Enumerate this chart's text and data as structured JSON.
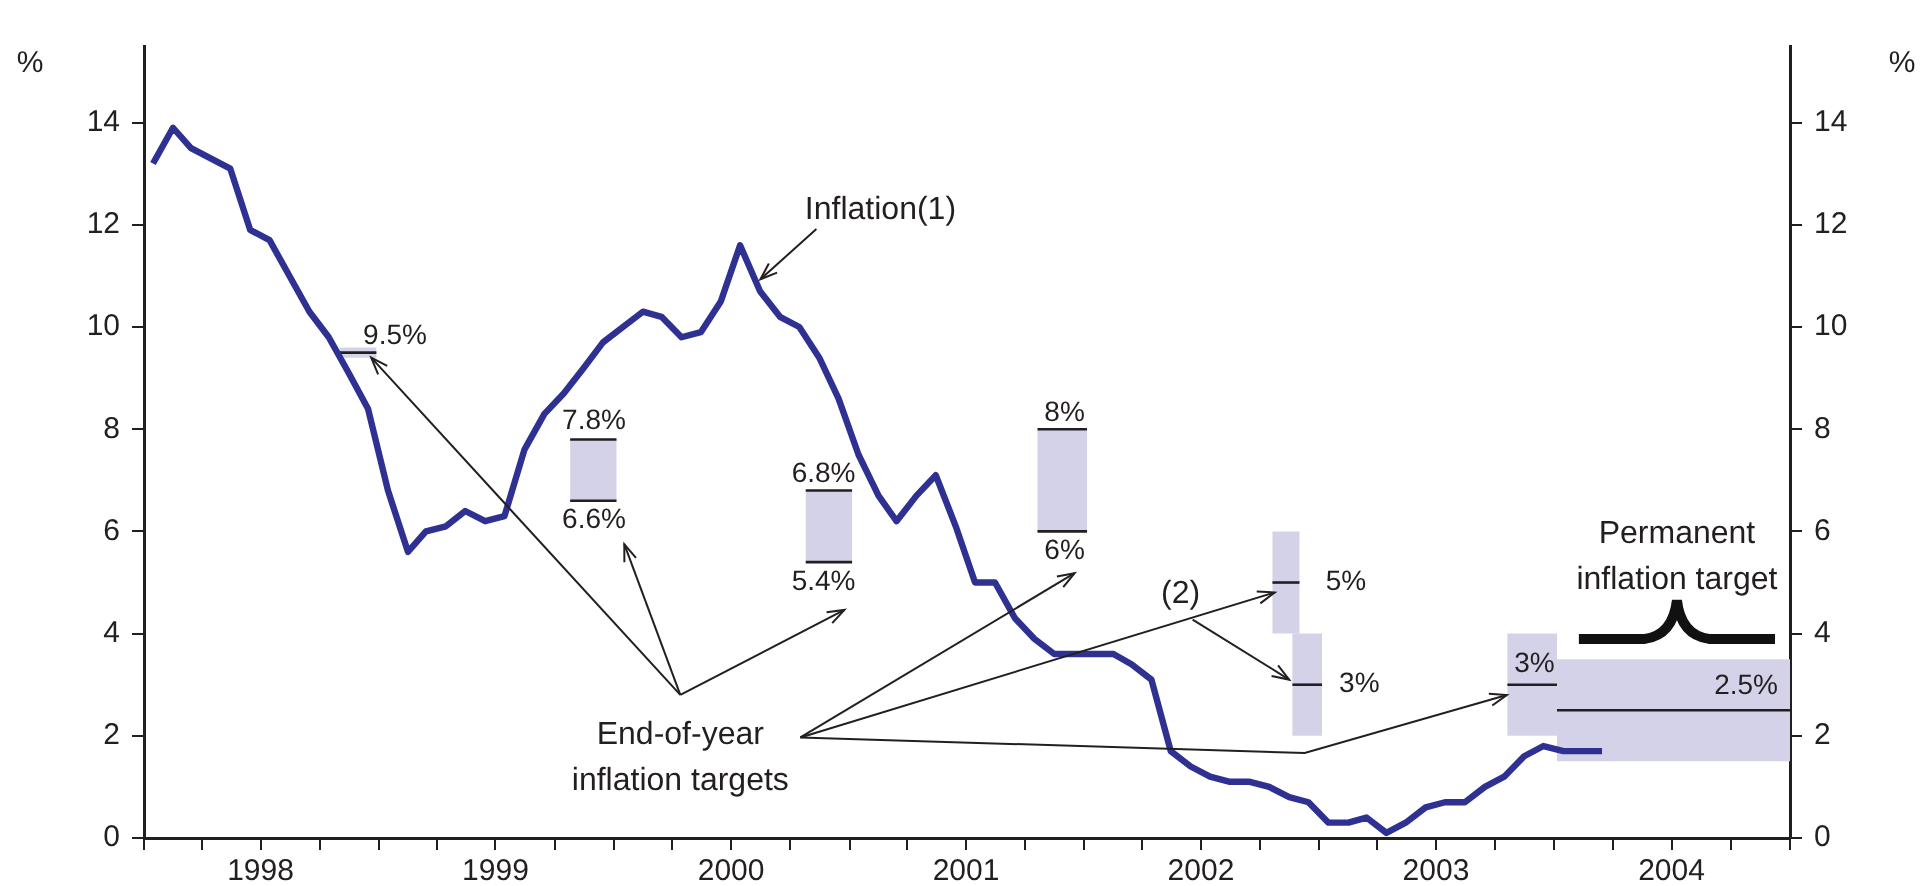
{
  "chart_data": {
    "type": "line",
    "ylabel": "%",
    "y2label": "%",
    "xlim": [
      "1998-01-01",
      "2005-01-01"
    ],
    "xticks": [
      {
        "value": "1998-01-01",
        "label": null
      },
      {
        "value": "1998-04-01",
        "label": null
      },
      {
        "value": "1998-07-01",
        "label": "1998"
      },
      {
        "value": "1998-10-01",
        "label": null
      },
      {
        "value": "1999-01-01",
        "label": null
      },
      {
        "value": "1999-04-01",
        "label": null
      },
      {
        "value": "1999-07-01",
        "label": "1999"
      },
      {
        "value": "1999-10-01",
        "label": null
      },
      {
        "value": "2000-01-01",
        "label": null
      },
      {
        "value": "2000-04-01",
        "label": null
      },
      {
        "value": "2000-07-01",
        "label": "2000"
      },
      {
        "value": "2000-10-01",
        "label": null
      },
      {
        "value": "2001-01-01",
        "label": null
      },
      {
        "value": "2001-04-01",
        "label": null
      },
      {
        "value": "2001-07-01",
        "label": "2001"
      },
      {
        "value": "2001-10-01",
        "label": null
      },
      {
        "value": "2002-01-01",
        "label": null
      },
      {
        "value": "2002-04-01",
        "label": null
      },
      {
        "value": "2002-07-01",
        "label": "2002"
      },
      {
        "value": "2002-10-01",
        "label": null
      },
      {
        "value": "2003-01-01",
        "label": null
      },
      {
        "value": "2003-04-01",
        "label": null
      },
      {
        "value": "2003-07-01",
        "label": "2003"
      },
      {
        "value": "2003-10-01",
        "label": null
      },
      {
        "value": "2004-01-01",
        "label": null
      },
      {
        "value": "2004-04-01",
        "label": null
      },
      {
        "value": "2004-07-01",
        "label": "2004"
      },
      {
        "value": "2004-10-01",
        "label": null
      },
      {
        "value": "2005-01-01",
        "label": null
      }
    ],
    "ylim": [
      0,
      15.5
    ],
    "yticks": [
      0,
      2,
      4,
      6,
      8,
      10,
      12,
      14
    ],
    "y2lim": [
      0,
      15.5
    ],
    "y2ticks": [
      0,
      2,
      4,
      6,
      8,
      10,
      12,
      14
    ],
    "series": [
      {
        "name": "Inflation(1)",
        "type": "line",
        "color": "#2e3192",
        "x": [
          "1998-01-15",
          "1998-02-15",
          "1998-03-15",
          "1998-05-15",
          "1998-06-15",
          "1998-07-15",
          "1998-08-15",
          "1998-09-15",
          "1998-10-15",
          "1998-11-15",
          "1998-12-15",
          "1999-01-15",
          "1999-02-15",
          "1999-03-15",
          "1999-04-15",
          "1999-05-15",
          "1999-06-15",
          "1999-07-15",
          "1999-08-15",
          "1999-09-15",
          "1999-10-15",
          "1999-11-15",
          "1999-12-15",
          "2000-01-15",
          "2000-02-15",
          "2000-03-15",
          "2000-04-15",
          "2000-05-15",
          "2000-06-15",
          "2000-07-15",
          "2000-08-15",
          "2000-09-15",
          "2000-10-15",
          "2000-11-15",
          "2000-12-15",
          "2001-01-15",
          "2001-02-15",
          "2001-03-15",
          "2001-04-15",
          "2001-05-15",
          "2001-06-15",
          "2001-07-15",
          "2001-08-15",
          "2001-09-15",
          "2001-10-15",
          "2001-11-15",
          "2001-12-15",
          "2002-01-15",
          "2002-02-15",
          "2002-03-15",
          "2002-04-15",
          "2002-05-15",
          "2002-06-15",
          "2002-07-15",
          "2002-08-15",
          "2002-09-15",
          "2002-10-15",
          "2002-11-15",
          "2002-12-15",
          "2003-01-15",
          "2003-02-15",
          "2003-03-15",
          "2003-04-15",
          "2003-05-15",
          "2003-06-15",
          "2003-07-15",
          "2003-08-15",
          "2003-09-15",
          "2003-10-15",
          "2003-11-15",
          "2003-12-15",
          "2004-01-15",
          "2004-02-15",
          "2004-03-15"
        ],
        "values": [
          13.2,
          13.9,
          13.5,
          13.1,
          11.9,
          11.7,
          11.0,
          10.3,
          9.8,
          9.1,
          8.4,
          6.8,
          5.6,
          6.0,
          6.1,
          6.4,
          6.2,
          6.3,
          7.6,
          8.3,
          8.7,
          9.2,
          9.7,
          10.0,
          10.3,
          10.2,
          9.8,
          9.9,
          10.5,
          11.6,
          10.7,
          10.2,
          10.0,
          9.4,
          8.6,
          7.5,
          6.7,
          6.2,
          6.7,
          7.1,
          6.1,
          5.0,
          5.0,
          4.3,
          3.9,
          3.6,
          3.6,
          3.6,
          3.6,
          3.4,
          3.1,
          1.7,
          1.4,
          1.2,
          1.1,
          1.1,
          1.0,
          0.8,
          0.7,
          0.3,
          0.3,
          0.4,
          0.1,
          0.3,
          0.6,
          0.7,
          0.7,
          1.0,
          1.2,
          1.6,
          1.8,
          1.7,
          1.7,
          1.7
        ]
      },
      {
        "color": "#231f20",
        "x": [
          "1998-11-01",
          "1998-12-28"
        ],
        "values": [
          9.5,
          9.5
        ],
        "lower": [
          9.4,
          9.4
        ],
        "upper": [
          9.6,
          9.6
        ]
      },
      {
        "type": "line",
        "color": "#231f20",
        "x": [
          "1999-10-25",
          "2000-01-05"
        ],
        "values": [
          null,
          null
        ],
        "lower": [
          6.6,
          6.6
        ],
        "upper": [
          7.8,
          7.8
        ]
      },
      {
        "type": "line",
        "color": "#231f20",
        "x": [
          "2000-10-25",
          "2001-01-05"
        ],
        "values": [
          null,
          null
        ],
        "lower": [
          5.4,
          5.4
        ],
        "upper": [
          6.8,
          6.8
        ]
      },
      {
        "type": "line",
        "color": "#231f20",
        "x": [
          "2001-10-20",
          "2002-01-05"
        ],
        "values": [
          null,
          null
        ],
        "lower": [
          6,
          6
        ],
        "upper": [
          8,
          8
        ]
      },
      {
        "type": "line",
        "color": "#231f20",
        "x": [
          "2002-10-20",
          "2002-12-01"
        ],
        "values": [
          5,
          5
        ],
        "lower": [
          4,
          4
        ],
        "upper": [
          6,
          6
        ]
      },
      {
        "type": "line",
        "color": "#231f20",
        "x": [
          "2002-11-20",
          "2003-01-05"
        ],
        "values": [
          3,
          3
        ],
        "lower": [
          2,
          2
        ],
        "upper": [
          4,
          4
        ]
      },
      {
        "type": "line",
        "color": "#231f20",
        "x": [
          "2003-10-20",
          "2004-01-05"
        ],
        "values": [
          3,
          3
        ],
        "lower": [
          2,
          2
        ],
        "upper": [
          4,
          4
        ]
      },
      {
        "type": "line",
        "color": "#231f20",
        "x": [
          "2004-01-05",
          "2005-01-01"
        ],
        "values": [
          2.5,
          2.5
        ],
        "lower": [
          1.5,
          1.5
        ],
        "upper": [
          3.5,
          3.5
        ]
      }
    ],
    "annotations": [
      {
        "text": "9.5%",
        "x": "1998-12-01",
        "y": 9.5
      },
      {
        "text": "7.8%",
        "x": "1999-12-01",
        "y": 7.8
      },
      {
        "text": "6.6%",
        "x": "1999-12-01",
        "y": 6.6
      },
      {
        "text": "6.8%",
        "x": "2000-12-01",
        "y": 6.8
      },
      {
        "text": "5.4%",
        "x": "2000-12-01",
        "y": 5.4
      },
      {
        "text": "8%",
        "x": "2001-12-01",
        "y": 8
      },
      {
        "text": "6%",
        "x": "2001-12-01",
        "y": 6
      },
      {
        "text": "5%",
        "x": "2002-11-10",
        "y": 5
      },
      {
        "text": "3%",
        "x": "2002-12-10",
        "y": 3
      },
      {
        "text": "3%",
        "x": "2003-12-01",
        "y": 3
      },
      {
        "text": "2.5%",
        "x": "2004-12-01",
        "y": 2.5
      },
      {
        "text": "End-of-year inflation targets",
        "x": "1998-12-20",
        "y": 9.4
      },
      {
        "text": "(2)",
        "x": "2002-11-15",
        "y": 3.1
      },
      "Permanent inflation target"
    ]
  }
}
